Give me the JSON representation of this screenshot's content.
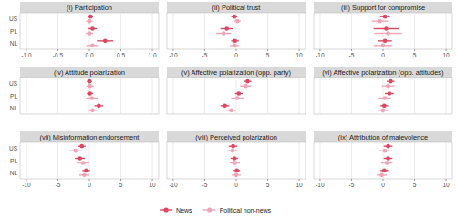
{
  "chart_data": [
    {
      "type": "dot",
      "title": "(i) Participation",
      "orientation": "horizontal",
      "grid": true,
      "legend": "bottom",
      "categories": [
        "US",
        "PL",
        "NL"
      ],
      "xlim": [
        -1.1,
        1.1
      ],
      "xticks": [
        {
          "value": -1,
          "label": "-1.0"
        },
        -0.5,
        {
          "value": 0,
          "label": "0.0"
        },
        0.5,
        {
          "value": 1,
          "label": "1.0"
        }
      ],
      "series": [
        {
          "name": "News",
          "color": "#dc4863",
          "values": [
            0.02,
            0.05,
            0.25
          ],
          "errors": [
            0.04,
            0.07,
            0.13
          ]
        },
        {
          "name": "Political non-news",
          "color": "#f0a5b6",
          "values": [
            0.0,
            0.0,
            0.05
          ],
          "errors": [
            0.05,
            0.06,
            0.1
          ]
        }
      ]
    },
    {
      "type": "dot",
      "title": "(ii) Political trust",
      "orientation": "horizontal",
      "grid": true,
      "tick_labels": "x",
      "categories": [
        "US",
        "PL",
        "NL"
      ],
      "xlim": [
        -11,
        11
      ],
      "xticks": [
        -10,
        -5,
        0,
        5,
        10
      ],
      "series": [
        {
          "name": "News",
          "color": "#dc4863",
          "values": [
            -0.3,
            -1.5,
            -0.2
          ],
          "errors": [
            0.5,
            1.0,
            0.6
          ]
        },
        {
          "name": "Political non-news",
          "color": "#f0a5b6",
          "values": [
            0.2,
            -2.0,
            -0.3
          ],
          "errors": [
            0.5,
            1.2,
            0.7
          ]
        }
      ]
    },
    {
      "type": "dot",
      "title": "(iii) Support for compromise",
      "orientation": "horizontal",
      "grid": true,
      "tick_labels": "x",
      "categories": [
        "US",
        "PL",
        "NL"
      ],
      "xlim": [
        -11,
        11
      ],
      "xticks": [
        -10,
        -5,
        0,
        5,
        10
      ],
      "series": [
        {
          "name": "News",
          "color": "#dc4863",
          "values": [
            0.3,
            0.5,
            0.3
          ],
          "errors": [
            0.8,
            2.0,
            1.1
          ]
        },
        {
          "name": "Political non-news",
          "color": "#f0a5b6",
          "values": [
            -0.5,
            0.8,
            0.0
          ],
          "errors": [
            1.3,
            2.2,
            1.5
          ]
        }
      ]
    },
    {
      "type": "dot",
      "title": "(iv) Attitude polarization",
      "orientation": "horizontal",
      "grid": true,
      "tick_labels": "y",
      "categories": [
        "US",
        "PL",
        "NL"
      ],
      "xlim": [
        -11,
        11
      ],
      "xticks": [
        -10,
        -5,
        0,
        5,
        10
      ],
      "series": [
        {
          "name": "News",
          "color": "#dc4863",
          "values": [
            0.0,
            0.1,
            1.5
          ],
          "errors": [
            0.4,
            0.5,
            0.7
          ]
        },
        {
          "name": "Political non-news",
          "color": "#f0a5b6",
          "values": [
            0.1,
            0.4,
            0.5
          ],
          "errors": [
            0.6,
            0.9,
            0.8
          ]
        }
      ]
    },
    {
      "type": "dot",
      "title": "(v) Affective polarization (opp. party)",
      "orientation": "horizontal",
      "grid": true,
      "tick_labels": false,
      "categories": [
        "US",
        "PL",
        "NL"
      ],
      "xlim": [
        -11,
        11
      ],
      "xticks": [
        -10,
        -5,
        0,
        5,
        10
      ],
      "series": [
        {
          "name": "News",
          "color": "#dc4863",
          "values": [
            1.8,
            0.4,
            -1.8
          ],
          "errors": [
            0.6,
            0.6,
            0.7
          ]
        },
        {
          "name": "Political non-news",
          "color": "#f0a5b6",
          "values": [
            1.5,
            0.2,
            -0.8
          ],
          "errors": [
            0.9,
            1.0,
            0.8
          ]
        }
      ]
    },
    {
      "type": "dot",
      "title": "(vi) Affective polarization (opp. attitudes)",
      "orientation": "horizontal",
      "grid": true,
      "tick_labels": false,
      "categories": [
        "US",
        "PL",
        "NL"
      ],
      "xlim": [
        -11,
        11
      ],
      "xticks": [
        -10,
        -5,
        0,
        5,
        10
      ],
      "series": [
        {
          "name": "News",
          "color": "#dc4863",
          "values": [
            1.2,
            1.0,
            0.2
          ],
          "errors": [
            0.6,
            0.7,
            0.6
          ]
        },
        {
          "name": "Political non-news",
          "color": "#f0a5b6",
          "values": [
            0.8,
            0.3,
            0.0
          ],
          "errors": [
            1.0,
            1.0,
            0.8
          ]
        }
      ]
    },
    {
      "type": "dot",
      "title": "(vii) Misinformation endorsement",
      "orientation": "horizontal",
      "grid": true,
      "categories": [
        "US",
        "PL",
        "NL"
      ],
      "xlim": [
        -11,
        11
      ],
      "xticks": [
        -10,
        -5,
        0,
        5,
        10
      ],
      "series": [
        {
          "name": "News",
          "color": "#dc4863",
          "values": [
            -1.2,
            -1.5,
            -0.5
          ],
          "errors": [
            0.6,
            0.8,
            0.6
          ]
        },
        {
          "name": "Political non-news",
          "color": "#f0a5b6",
          "values": [
            -2.2,
            -1.0,
            -0.8
          ],
          "errors": [
            1.0,
            1.0,
            0.8
          ]
        }
      ]
    },
    {
      "type": "dot",
      "title": "(viii) Perceived polarization",
      "orientation": "horizontal",
      "grid": true,
      "tick_labels": "x",
      "categories": [
        "US",
        "PL",
        "NL"
      ],
      "xlim": [
        -11,
        11
      ],
      "xticks": [
        -10,
        -5,
        0,
        5,
        10
      ],
      "series": [
        {
          "name": "News",
          "color": "#dc4863",
          "values": [
            -0.5,
            -0.3,
            0.1
          ],
          "errors": [
            0.7,
            0.6,
            0.5
          ]
        },
        {
          "name": "Political non-news",
          "color": "#f0a5b6",
          "values": [
            -0.6,
            -0.2,
            0.0
          ],
          "errors": [
            0.8,
            0.8,
            0.7
          ]
        }
      ]
    },
    {
      "type": "dot",
      "title": "(ix) Attribution of malevolence",
      "orientation": "horizontal",
      "grid": true,
      "tick_labels": "x",
      "categories": [
        "US",
        "PL",
        "NL"
      ],
      "xlim": [
        -11,
        11
      ],
      "xticks": [
        -10,
        -5,
        0,
        5,
        10
      ],
      "series": [
        {
          "name": "News",
          "color": "#dc4863",
          "values": [
            0.8,
            0.8,
            0.2
          ],
          "errors": [
            0.7,
            0.7,
            0.6
          ]
        },
        {
          "name": "Political non-news",
          "color": "#f0a5b6",
          "values": [
            0.3,
            0.6,
            -0.2
          ],
          "errors": [
            0.9,
            0.9,
            0.8
          ]
        }
      ]
    }
  ]
}
